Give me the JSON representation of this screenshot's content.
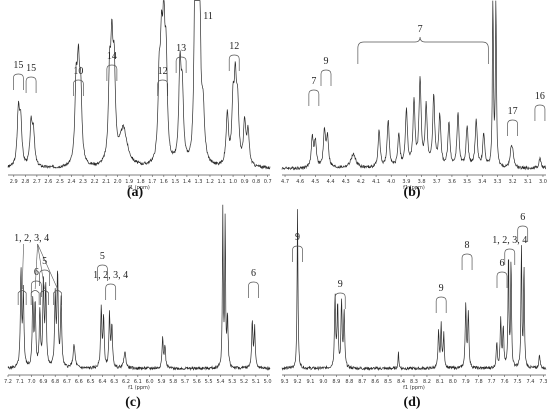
{
  "chart_data": [
    {
      "panel": "(a)",
      "type": "line",
      "xlabel": "f1 (ppm)",
      "xlim": [
        2.95,
        0.68
      ],
      "ticks": [
        "2.9",
        "2.8",
        "2.7",
        "2.6",
        "2.5",
        "2.4",
        "2.3",
        "2.2",
        "2.1",
        "2.0",
        "1.9",
        "1.8",
        "1.7",
        "1.6",
        "1.5",
        "1.4",
        "1.3",
        "1.2",
        "1.1",
        "1.0",
        "0.9",
        "0.8",
        "0.7"
      ],
      "peaks": [
        {
          "ppm": 2.86,
          "h": 0.32,
          "w": 0.012
        },
        {
          "ppm": 2.84,
          "h": 0.26,
          "w": 0.012
        },
        {
          "ppm": 2.75,
          "h": 0.24,
          "w": 0.012
        },
        {
          "ppm": 2.73,
          "h": 0.2,
          "w": 0.012
        },
        {
          "ppm": 2.36,
          "h": 0.44,
          "w": 0.012
        },
        {
          "ppm": 2.34,
          "h": 0.52,
          "w": 0.012
        },
        {
          "ppm": 2.32,
          "h": 0.4,
          "w": 0.012
        },
        {
          "ppm": 2.07,
          "h": 0.48,
          "w": 0.012
        },
        {
          "ppm": 2.05,
          "h": 0.6,
          "w": 0.012
        },
        {
          "ppm": 2.03,
          "h": 0.5,
          "w": 0.012
        },
        {
          "ppm": 1.95,
          "h": 0.22,
          "w": 0.04
        },
        {
          "ppm": 1.64,
          "h": 0.45,
          "w": 0.012
        },
        {
          "ppm": 1.62,
          "h": 0.58,
          "w": 0.012
        },
        {
          "ppm": 1.6,
          "h": 0.7,
          "w": 0.012
        },
        {
          "ppm": 1.58,
          "h": 0.55,
          "w": 0.012
        },
        {
          "ppm": 1.46,
          "h": 0.55,
          "w": 0.012
        },
        {
          "ppm": 1.44,
          "h": 0.4,
          "w": 0.012
        },
        {
          "ppm": 1.33,
          "h": 1.0,
          "w": 0.01
        },
        {
          "ppm": 1.31,
          "h": 0.98,
          "w": 0.01
        },
        {
          "ppm": 1.29,
          "h": 0.95,
          "w": 0.01
        },
        {
          "ppm": 1.26,
          "h": 0.3,
          "w": 0.015
        },
        {
          "ppm": 1.05,
          "h": 0.3,
          "w": 0.012
        },
        {
          "ppm": 1.0,
          "h": 0.34,
          "w": 0.012
        },
        {
          "ppm": 0.98,
          "h": 0.44,
          "w": 0.012
        },
        {
          "ppm": 0.96,
          "h": 0.32,
          "w": 0.012
        },
        {
          "ppm": 0.9,
          "h": 0.25,
          "w": 0.012
        },
        {
          "ppm": 0.87,
          "h": 0.2,
          "w": 0.012
        }
      ],
      "annotations": [
        {
          "label": "15",
          "ppm": 2.86,
          "type": "bracket",
          "textY": 68
        },
        {
          "label": "15",
          "ppm": 2.75,
          "type": "bracket",
          "textY": 71
        },
        {
          "label": "10",
          "ppm": 2.34,
          "type": "bracket",
          "textY": 74
        },
        {
          "label": "14",
          "ppm": 2.05,
          "type": "bracket",
          "textY": 59
        },
        {
          "label": "12",
          "ppm": 1.61,
          "type": "bracket",
          "textY": 74
        },
        {
          "label": "13",
          "ppm": 1.45,
          "type": "bracket",
          "textY": 51
        },
        {
          "label": "11",
          "ppm": 1.31,
          "type": "label",
          "textY": 19
        },
        {
          "label": "12",
          "ppm": 0.99,
          "type": "bracket",
          "textY": 49
        }
      ]
    },
    {
      "panel": "(b)",
      "type": "line",
      "xlabel": "f1 (ppm)",
      "xlim": [
        4.72,
        2.98
      ],
      "ticks": [
        "4.7",
        "4.6",
        "4.5",
        "4.4",
        "4.3",
        "4.2",
        "4.1",
        "4.0",
        "3.9",
        "3.8",
        "3.7",
        "3.6",
        "3.5",
        "3.4",
        "3.3",
        "3.2",
        "3.1",
        "3.0"
      ],
      "peaks": [
        {
          "ppm": 4.52,
          "h": 0.18,
          "w": 0.008
        },
        {
          "ppm": 4.5,
          "h": 0.15,
          "w": 0.008
        },
        {
          "ppm": 4.44,
          "h": 0.22,
          "w": 0.008
        },
        {
          "ppm": 4.42,
          "h": 0.18,
          "w": 0.008
        },
        {
          "ppm": 4.25,
          "h": 0.08,
          "w": 0.02
        },
        {
          "ppm": 4.08,
          "h": 0.22,
          "w": 0.008
        },
        {
          "ppm": 4.02,
          "h": 0.28,
          "w": 0.008
        },
        {
          "ppm": 3.95,
          "h": 0.2,
          "w": 0.008
        },
        {
          "ppm": 3.9,
          "h": 0.34,
          "w": 0.008
        },
        {
          "ppm": 3.85,
          "h": 0.38,
          "w": 0.008
        },
        {
          "ppm": 3.81,
          "h": 0.52,
          "w": 0.008
        },
        {
          "ppm": 3.77,
          "h": 0.36,
          "w": 0.008
        },
        {
          "ppm": 3.72,
          "h": 0.42,
          "w": 0.008
        },
        {
          "ppm": 3.68,
          "h": 0.3,
          "w": 0.008
        },
        {
          "ppm": 3.62,
          "h": 0.26,
          "w": 0.008
        },
        {
          "ppm": 3.56,
          "h": 0.32,
          "w": 0.008
        },
        {
          "ppm": 3.5,
          "h": 0.24,
          "w": 0.008
        },
        {
          "ppm": 3.44,
          "h": 0.28,
          "w": 0.008
        },
        {
          "ppm": 3.39,
          "h": 0.2,
          "w": 0.008
        },
        {
          "ppm": 3.33,
          "h": 1.0,
          "w": 0.004
        },
        {
          "ppm": 3.31,
          "h": 1.0,
          "w": 0.004
        },
        {
          "ppm": 3.21,
          "h": 0.1,
          "w": 0.008
        },
        {
          "ppm": 3.2,
          "h": 0.08,
          "w": 0.008
        },
        {
          "ppm": 3.02,
          "h": 0.06,
          "w": 0.008
        }
      ],
      "annotations": [
        {
          "label": "7",
          "ppm": 4.51,
          "type": "bracket",
          "textY": 84
        },
        {
          "label": "9",
          "ppm": 4.43,
          "type": "bracket",
          "textY": 64
        },
        {
          "label": "7",
          "ppm": 3.81,
          "type": "curly",
          "from": 4.22,
          "to": 3.36,
          "textY": 34
        },
        {
          "label": "17",
          "ppm": 3.2,
          "type": "bracket",
          "textY": 114
        },
        {
          "label": "16",
          "ppm": 3.02,
          "type": "bracket",
          "textY": 99
        }
      ]
    },
    {
      "panel": "(c)",
      "type": "line",
      "xlabel": "f1 (ppm)",
      "xlim": [
        7.2,
        4.98
      ],
      "ticks": [
        "7.2",
        "7.1",
        "7.0",
        "6.9",
        "6.8",
        "6.7",
        "6.6",
        "6.5",
        "6.4",
        "6.3",
        "6.2",
        "6.1",
        "6.0",
        "5.9",
        "5.8",
        "5.7",
        "5.6",
        "5.5",
        "5.4",
        "5.3",
        "5.2",
        "5.1",
        "5.0"
      ],
      "peaks": [
        {
          "ppm": 7.09,
          "h": 0.58,
          "w": 0.006
        },
        {
          "ppm": 7.07,
          "h": 0.45,
          "w": 0.006
        },
        {
          "ppm": 6.99,
          "h": 0.4,
          "w": 0.006
        },
        {
          "ppm": 6.97,
          "h": 0.38,
          "w": 0.006
        },
        {
          "ppm": 6.93,
          "h": 0.34,
          "w": 0.006
        },
        {
          "ppm": 6.9,
          "h": 0.52,
          "w": 0.006
        },
        {
          "ppm": 6.88,
          "h": 0.48,
          "w": 0.006
        },
        {
          "ppm": 6.8,
          "h": 0.44,
          "w": 0.006
        },
        {
          "ppm": 6.78,
          "h": 0.56,
          "w": 0.006
        },
        {
          "ppm": 6.75,
          "h": 0.42,
          "w": 0.006
        },
        {
          "ppm": 6.64,
          "h": 0.14,
          "w": 0.01
        },
        {
          "ppm": 6.41,
          "h": 0.36,
          "w": 0.006
        },
        {
          "ppm": 6.39,
          "h": 0.3,
          "w": 0.006
        },
        {
          "ppm": 6.34,
          "h": 0.32,
          "w": 0.006
        },
        {
          "ppm": 6.32,
          "h": 0.26,
          "w": 0.006
        },
        {
          "ppm": 6.21,
          "h": 0.1,
          "w": 0.01
        },
        {
          "ppm": 5.89,
          "h": 0.18,
          "w": 0.006
        },
        {
          "ppm": 5.87,
          "h": 0.14,
          "w": 0.006
        },
        {
          "ppm": 5.38,
          "h": 1.0,
          "w": 0.004
        },
        {
          "ppm": 5.36,
          "h": 0.9,
          "w": 0.004
        },
        {
          "ppm": 5.34,
          "h": 0.3,
          "w": 0.006
        },
        {
          "ppm": 5.13,
          "h": 0.28,
          "w": 0.006
        },
        {
          "ppm": 5.11,
          "h": 0.24,
          "w": 0.006
        }
      ],
      "annotations": [
        {
          "label": "1, 2, 3, 4",
          "type": "fan",
          "textPpm": 7.0,
          "textY": 241,
          "targets": [
            7.08,
            6.97,
            6.89,
            6.78
          ]
        },
        {
          "label": "6",
          "ppm": 6.96,
          "type": "bracket",
          "textY": 275
        },
        {
          "label": "5",
          "ppm": 6.89,
          "type": "bracket",
          "textY": 264
        },
        {
          "label": "5",
          "ppm": 6.4,
          "type": "bracket",
          "textY": 259
        },
        {
          "label": "1, 2, 3, 4",
          "ppm": 6.33,
          "type": "bracket",
          "textY": 278
        },
        {
          "label": "6",
          "ppm": 5.12,
          "type": "bracket",
          "textY": 276
        }
      ]
    },
    {
      "panel": "(d)",
      "type": "line",
      "xlabel": "f1 (ppm)",
      "xlim": [
        9.32,
        7.28
      ],
      "ticks": [
        "9.3",
        "9.2",
        "9.1",
        "9.0",
        "8.9",
        "8.8",
        "8.7",
        "8.6",
        "8.5",
        "8.4",
        "8.3",
        "8.2",
        "8.1",
        "8.0",
        "7.9",
        "7.8",
        "7.7",
        "7.6",
        "7.5",
        "7.4",
        "7.3"
      ],
      "peaks": [
        {
          "ppm": 9.2,
          "h": 0.98,
          "w": 0.004
        },
        {
          "ppm": 8.91,
          "h": 0.44,
          "w": 0.005
        },
        {
          "ppm": 8.89,
          "h": 0.38,
          "w": 0.005
        },
        {
          "ppm": 8.86,
          "h": 0.4,
          "w": 0.005
        },
        {
          "ppm": 8.84,
          "h": 0.34,
          "w": 0.005
        },
        {
          "ppm": 8.42,
          "h": 0.1,
          "w": 0.004
        },
        {
          "ppm": 8.11,
          "h": 0.22,
          "w": 0.005
        },
        {
          "ppm": 8.09,
          "h": 0.26,
          "w": 0.005
        },
        {
          "ppm": 8.07,
          "h": 0.2,
          "w": 0.005
        },
        {
          "ppm": 7.9,
          "h": 0.4,
          "w": 0.005
        },
        {
          "ppm": 7.88,
          "h": 0.34,
          "w": 0.005
        },
        {
          "ppm": 7.66,
          "h": 0.16,
          "w": 0.005
        },
        {
          "ppm": 7.63,
          "h": 0.3,
          "w": 0.005
        },
        {
          "ppm": 7.61,
          "h": 0.24,
          "w": 0.005
        },
        {
          "ppm": 7.57,
          "h": 0.72,
          "w": 0.004
        },
        {
          "ppm": 7.55,
          "h": 0.66,
          "w": 0.004
        },
        {
          "ppm": 7.47,
          "h": 0.74,
          "w": 0.004
        },
        {
          "ppm": 7.45,
          "h": 0.62,
          "w": 0.004
        },
        {
          "ppm": 7.33,
          "h": 0.08,
          "w": 0.006
        }
      ],
      "annotations": [
        {
          "label": "9",
          "ppm": 9.2,
          "type": "bracket",
          "textY": 240
        },
        {
          "label": "9",
          "ppm": 8.87,
          "type": "bracket",
          "textY": 287
        },
        {
          "label": "9",
          "ppm": 8.09,
          "type": "bracket",
          "textY": 291
        },
        {
          "label": "8",
          "ppm": 7.89,
          "type": "bracket",
          "textY": 248
        },
        {
          "label": "6",
          "ppm": 7.62,
          "type": "bracket",
          "textY": 266
        },
        {
          "label": "1, 2, 3, 4",
          "ppm": 7.56,
          "type": "bracket",
          "textY": 243
        },
        {
          "label": "6",
          "ppm": 7.46,
          "type": "bracket",
          "textY": 220
        }
      ]
    }
  ]
}
